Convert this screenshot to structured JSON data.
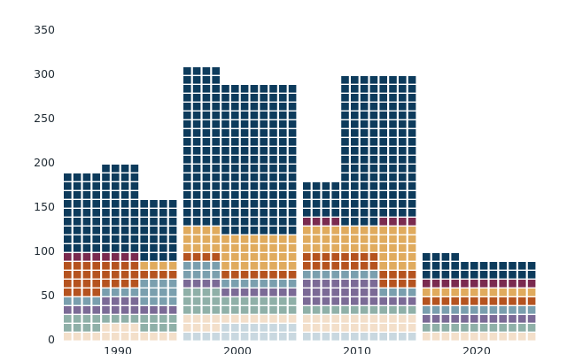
{
  "chart_data": {
    "type": "waffle-bar",
    "title": "",
    "xlabel": "",
    "ylabel": "",
    "ylim": [
      0,
      390
    ],
    "unit_per_square": 10,
    "y_ticks": [
      0,
      50,
      100,
      150,
      200,
      250,
      300,
      350
    ],
    "y_tick_labels": [
      "0",
      "50",
      "100",
      "150",
      "200",
      "250",
      "300",
      "350"
    ],
    "decades": [
      {
        "label": "1990",
        "stacks": [
          [
            1,
            2,
            1,
            1,
            4,
            0,
            1,
            9
          ],
          [
            2,
            1,
            2,
            1,
            3,
            0,
            1,
            10
          ],
          [
            1,
            2,
            1,
            3,
            1,
            1,
            0,
            7
          ]
        ]
      },
      {
        "label": "2000",
        "stacks": [
          [
            1,
            2,
            3,
            1,
            2,
            1,
            3,
            0,
            18
          ],
          [
            2,
            1,
            2,
            1,
            1,
            1,
            4,
            0,
            17
          ],
          [
            2,
            1,
            2,
            1,
            1,
            1,
            4,
            0,
            17
          ]
        ]
      },
      {
        "label": "2010",
        "stacks": [
          [
            1,
            2,
            1,
            3,
            1,
            2,
            3,
            1,
            2,
            2
          ],
          [
            1,
            2,
            1,
            3,
            1,
            2,
            3,
            0,
            17
          ],
          [
            1,
            2,
            1,
            1,
            1,
            2,
            5,
            1,
            16
          ]
        ]
      },
      {
        "label": "2020",
        "stacks": [
          [
            1,
            1,
            1,
            1,
            1,
            1,
            1,
            3
          ],
          [
            1,
            1,
            1,
            1,
            1,
            1,
            1,
            2
          ],
          [
            1,
            1,
            1,
            1,
            1,
            1,
            1,
            2
          ]
        ]
      }
    ],
    "colors": {
      "navy": "#0d3b5c",
      "plum": "#7a2a4f",
      "orange": "#b5531f",
      "sand": "#e0ab5e",
      "steel": "#7a9fae",
      "purple": "#7b6a96",
      "sage": "#8fb0a8",
      "cream": "#f3dfca",
      "pale-blue": "#c9d8e0"
    }
  }
}
